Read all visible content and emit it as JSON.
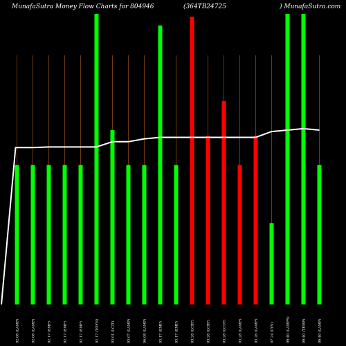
{
  "chart_data": {
    "type": "bar",
    "title_parts": [
      "MunafaSutra  Money Flow  Charts for 804946",
      "(364TB24725",
      ") MunafaSutra.com"
    ],
    "xlabel": "",
    "ylabel": "",
    "ylim": [
      0,
      100
    ],
    "grid": "vertical",
    "categories": [
      "02.08 (LAMP)",
      "02.08 (LAMP)",
      "02.17 (EMP)",
      "02.17 (EMP)",
      "02.17 (EMP)",
      "02.17 (TOEN)",
      "03.01 (LCIT)",
      "03.07 (LAMP)",
      "06.08 (LAMP)",
      "03.17 (EMP)",
      "03.17 (EMP)",
      "03.28 (LCBT)",
      "03.28 (LCBT)",
      "03.28 (LCUT)",
      "03.28 (LAMP)",
      "03.26 (LAMP)",
      "07.24 (LYN)",
      "09.40 (LAMPS)",
      "09.40 (TEMP)",
      "09.40 (LAMP)"
    ],
    "series": [
      {
        "values": [
          48,
          48,
          48,
          48,
          48,
          100,
          60,
          48,
          48,
          96,
          48,
          99,
          58,
          70,
          48,
          58,
          28,
          100,
          100,
          48
        ],
        "colors": [
          "#00ff00",
          "#00ff00",
          "#00ff00",
          "#00ff00",
          "#00ff00",
          "#00ff00",
          "#00ff00",
          "#00ff00",
          "#00ff00",
          "#00ff00",
          "#00ff00",
          "#ff0000",
          "#ff0000",
          "#ff0000",
          "#ff0000",
          "#ff0000",
          "#00ff00",
          "#00ff00",
          "#00ff00",
          "#00ff00"
        ]
      },
      {
        "type": "line",
        "color": "#ffffff",
        "values": [
          54,
          54,
          54.2,
          54.2,
          54.2,
          54.2,
          56,
          56,
          57,
          57.5,
          57.5,
          57.5,
          57.5,
          57.5,
          57.5,
          57.5,
          59.5,
          60,
          60.5,
          60
        ]
      }
    ]
  }
}
